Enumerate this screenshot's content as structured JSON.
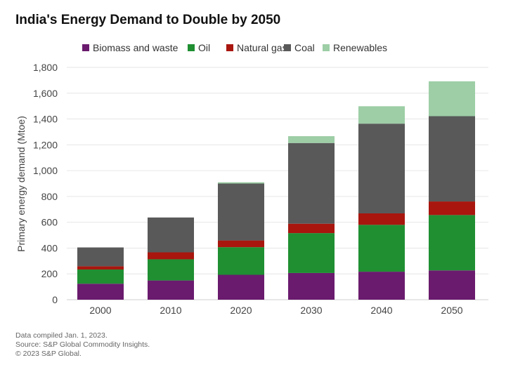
{
  "chart_data": {
    "type": "bar",
    "stacked": true,
    "title": "India's Energy Demand to Double by 2050",
    "xlabel": "",
    "ylabel": "Primary energy demand (Mtoe)",
    "ylim": [
      0,
      1800
    ],
    "yticks": [
      0,
      200,
      400,
      600,
      800,
      1000,
      1200,
      1400,
      1600,
      1800
    ],
    "ytick_labels": [
      "0",
      "200",
      "400",
      "600",
      "800",
      "1,000",
      "1,200",
      "1,400",
      "1,600",
      "1,800"
    ],
    "grid": true,
    "legend_position": "top",
    "categories": [
      "2000",
      "2010",
      "2020",
      "2030",
      "2040",
      "2050"
    ],
    "series": [
      {
        "name": "Biomass and waste",
        "color": "#6a1b6e",
        "values": [
          124,
          149,
          193,
          207,
          217,
          227
        ]
      },
      {
        "name": "Oil",
        "color": "#1f8f32",
        "values": [
          110,
          164,
          214,
          309,
          363,
          429
        ]
      },
      {
        "name": "Natural gas",
        "color": "#a8160e",
        "values": [
          25,
          54,
          52,
          73,
          89,
          105
        ]
      },
      {
        "name": "Coal",
        "color": "#595959",
        "values": [
          146,
          270,
          441,
          625,
          695,
          661
        ]
      },
      {
        "name": "Renewables",
        "color": "#9dcea6",
        "values": [
          0,
          0,
          10,
          53,
          135,
          270
        ]
      }
    ]
  },
  "footer": {
    "lines": [
      "Data compiled Jan. 1, 2023.",
      "Source: S&P Global Commodity Insights.",
      "© 2023 S&P Global."
    ]
  }
}
